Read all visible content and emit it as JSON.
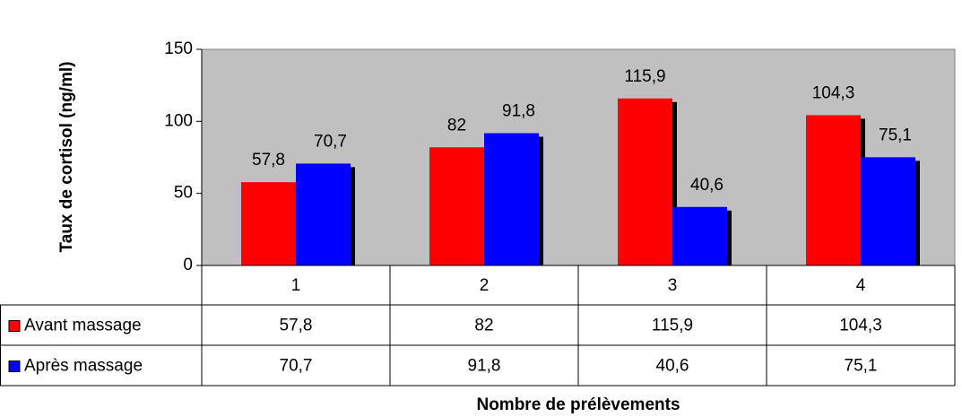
{
  "chart_data": {
    "type": "bar",
    "y_label": "Taux de cortisol (ng/ml)",
    "x_label": "Nombre de prélèvements",
    "categories": [
      "1",
      "2",
      "3",
      "4"
    ],
    "series": [
      {
        "name": "Avant massage",
        "color": "#ff0000",
        "values": [
          57.8,
          82,
          115.9,
          104.3
        ],
        "value_labels": [
          "57,8",
          "82",
          "115,9",
          "104,3"
        ]
      },
      {
        "name": "Après massage",
        "color": "#0000ff",
        "values": [
          70.7,
          91.8,
          40.6,
          75.1
        ],
        "value_labels": [
          "70,7",
          "91,8",
          "40,6",
          "75,1"
        ]
      }
    ],
    "ylim": [
      0,
      150
    ],
    "yticks": [
      0,
      50,
      100,
      150
    ],
    "plot_background": "#c0c0c0",
    "data_table": true
  }
}
